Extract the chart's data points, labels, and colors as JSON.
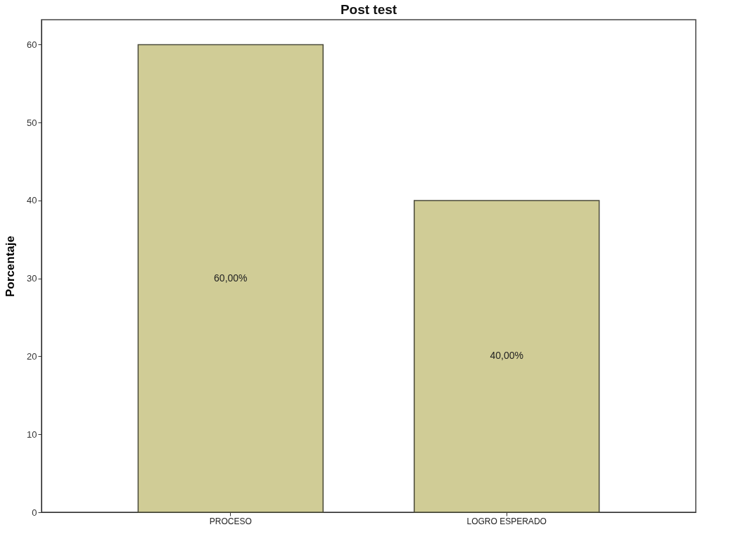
{
  "chart_data": {
    "type": "bar",
    "title": "Post test",
    "ylabel": "Porcentaje",
    "categories": [
      "PROCESO",
      "LOGRO ESPERADO"
    ],
    "values": [
      60,
      40
    ],
    "value_labels": [
      "60,00%",
      "40,00%"
    ],
    "color": "#d0cc96",
    "ylim": [
      0,
      63.2
    ],
    "yticks": [
      0,
      10,
      20,
      30,
      40,
      50,
      60
    ],
    "grid": false
  }
}
